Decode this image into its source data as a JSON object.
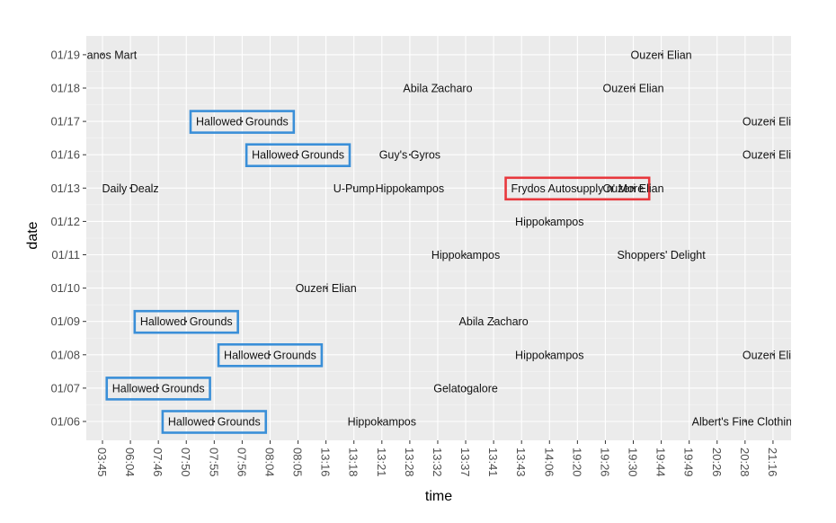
{
  "chart_data": {
    "type": "scatter",
    "title": "",
    "xlabel": "time",
    "ylabel": "date",
    "x_categories": [
      "03:45",
      "06:04",
      "07:46",
      "07:50",
      "07:55",
      "07:56",
      "08:04",
      "08:05",
      "13:16",
      "13:18",
      "13:21",
      "13:28",
      "13:32",
      "13:37",
      "13:41",
      "13:43",
      "14:06",
      "19:20",
      "19:26",
      "19:30",
      "19:44",
      "19:49",
      "20:26",
      "20:28",
      "21:16"
    ],
    "y_categories": [
      "01/06",
      "01/07",
      "01/08",
      "01/09",
      "01/10",
      "01/11",
      "01/12",
      "01/13",
      "01/16",
      "01/17",
      "01/18",
      "01/19"
    ],
    "grid": true,
    "legend": "none",
    "points": [
      {
        "date": "01/19",
        "time": "03:45",
        "label": "Kalianos Mart"
      },
      {
        "date": "01/19",
        "time": "19:44",
        "label": "Ouzeri Elian"
      },
      {
        "date": "01/18",
        "time": "13:32",
        "label": "Abila Zacharo"
      },
      {
        "date": "01/18",
        "time": "19:30",
        "label": "Ouzeri Elian"
      },
      {
        "date": "01/17",
        "time": "07:56",
        "label": "Hallowed Grounds",
        "highlight": "blue"
      },
      {
        "date": "01/17",
        "time": "21:16",
        "label": "Ouzeri Elian"
      },
      {
        "date": "01/16",
        "time": "08:05",
        "label": "Hallowed Grounds",
        "highlight": "blue"
      },
      {
        "date": "01/16",
        "time": "13:28",
        "label": "Guy's Gyros"
      },
      {
        "date": "01/16",
        "time": "21:16",
        "label": "Ouzeri Elian"
      },
      {
        "date": "01/13",
        "time": "06:04",
        "label": "Daily Dealz"
      },
      {
        "date": "01/13",
        "time": "13:18",
        "label": "U-Pump"
      },
      {
        "date": "01/13",
        "time": "13:28",
        "label": "Hippokampos"
      },
      {
        "date": "01/13",
        "time": "19:20",
        "label": "Frydos Autosupply n' More",
        "highlight": "red"
      },
      {
        "date": "01/13",
        "time": "19:30",
        "label": "Ouzeri Elian"
      },
      {
        "date": "01/12",
        "time": "14:06",
        "label": "Hippokampos"
      },
      {
        "date": "01/11",
        "time": "13:37",
        "label": "Hippokampos"
      },
      {
        "date": "01/11",
        "time": "19:44",
        "label": "Shoppers' Delight"
      },
      {
        "date": "01/10",
        "time": "13:16",
        "label": "Ouzeri Elian"
      },
      {
        "date": "01/09",
        "time": "07:50",
        "label": "Hallowed Grounds",
        "highlight": "blue"
      },
      {
        "date": "01/09",
        "time": "13:41",
        "label": "Abila Zacharo"
      },
      {
        "date": "01/08",
        "time": "08:04",
        "label": "Hallowed Grounds",
        "highlight": "blue"
      },
      {
        "date": "01/08",
        "time": "14:06",
        "label": "Hippokampos"
      },
      {
        "date": "01/08",
        "time": "21:16",
        "label": "Ouzeri Elian"
      },
      {
        "date": "01/07",
        "time": "07:46",
        "label": "Hallowed Grounds",
        "highlight": "blue"
      },
      {
        "date": "01/07",
        "time": "13:37",
        "label": "Gelatogalore"
      },
      {
        "date": "01/06",
        "time": "07:55",
        "label": "Hallowed Grounds",
        "highlight": "blue"
      },
      {
        "date": "01/06",
        "time": "13:21",
        "label": "Hippokampos"
      },
      {
        "date": "01/06",
        "time": "20:28",
        "label": "Albert's Fine Clothing"
      }
    ],
    "colors": {
      "panel": "#EBEBEB",
      "grid_major": "#FFFFFF",
      "grid_minor": "#F5F5F5",
      "highlight_blue": "#3A8FD8",
      "highlight_red": "#E8383D",
      "text": "#111111",
      "tick_text": "#4D4D4D"
    }
  }
}
